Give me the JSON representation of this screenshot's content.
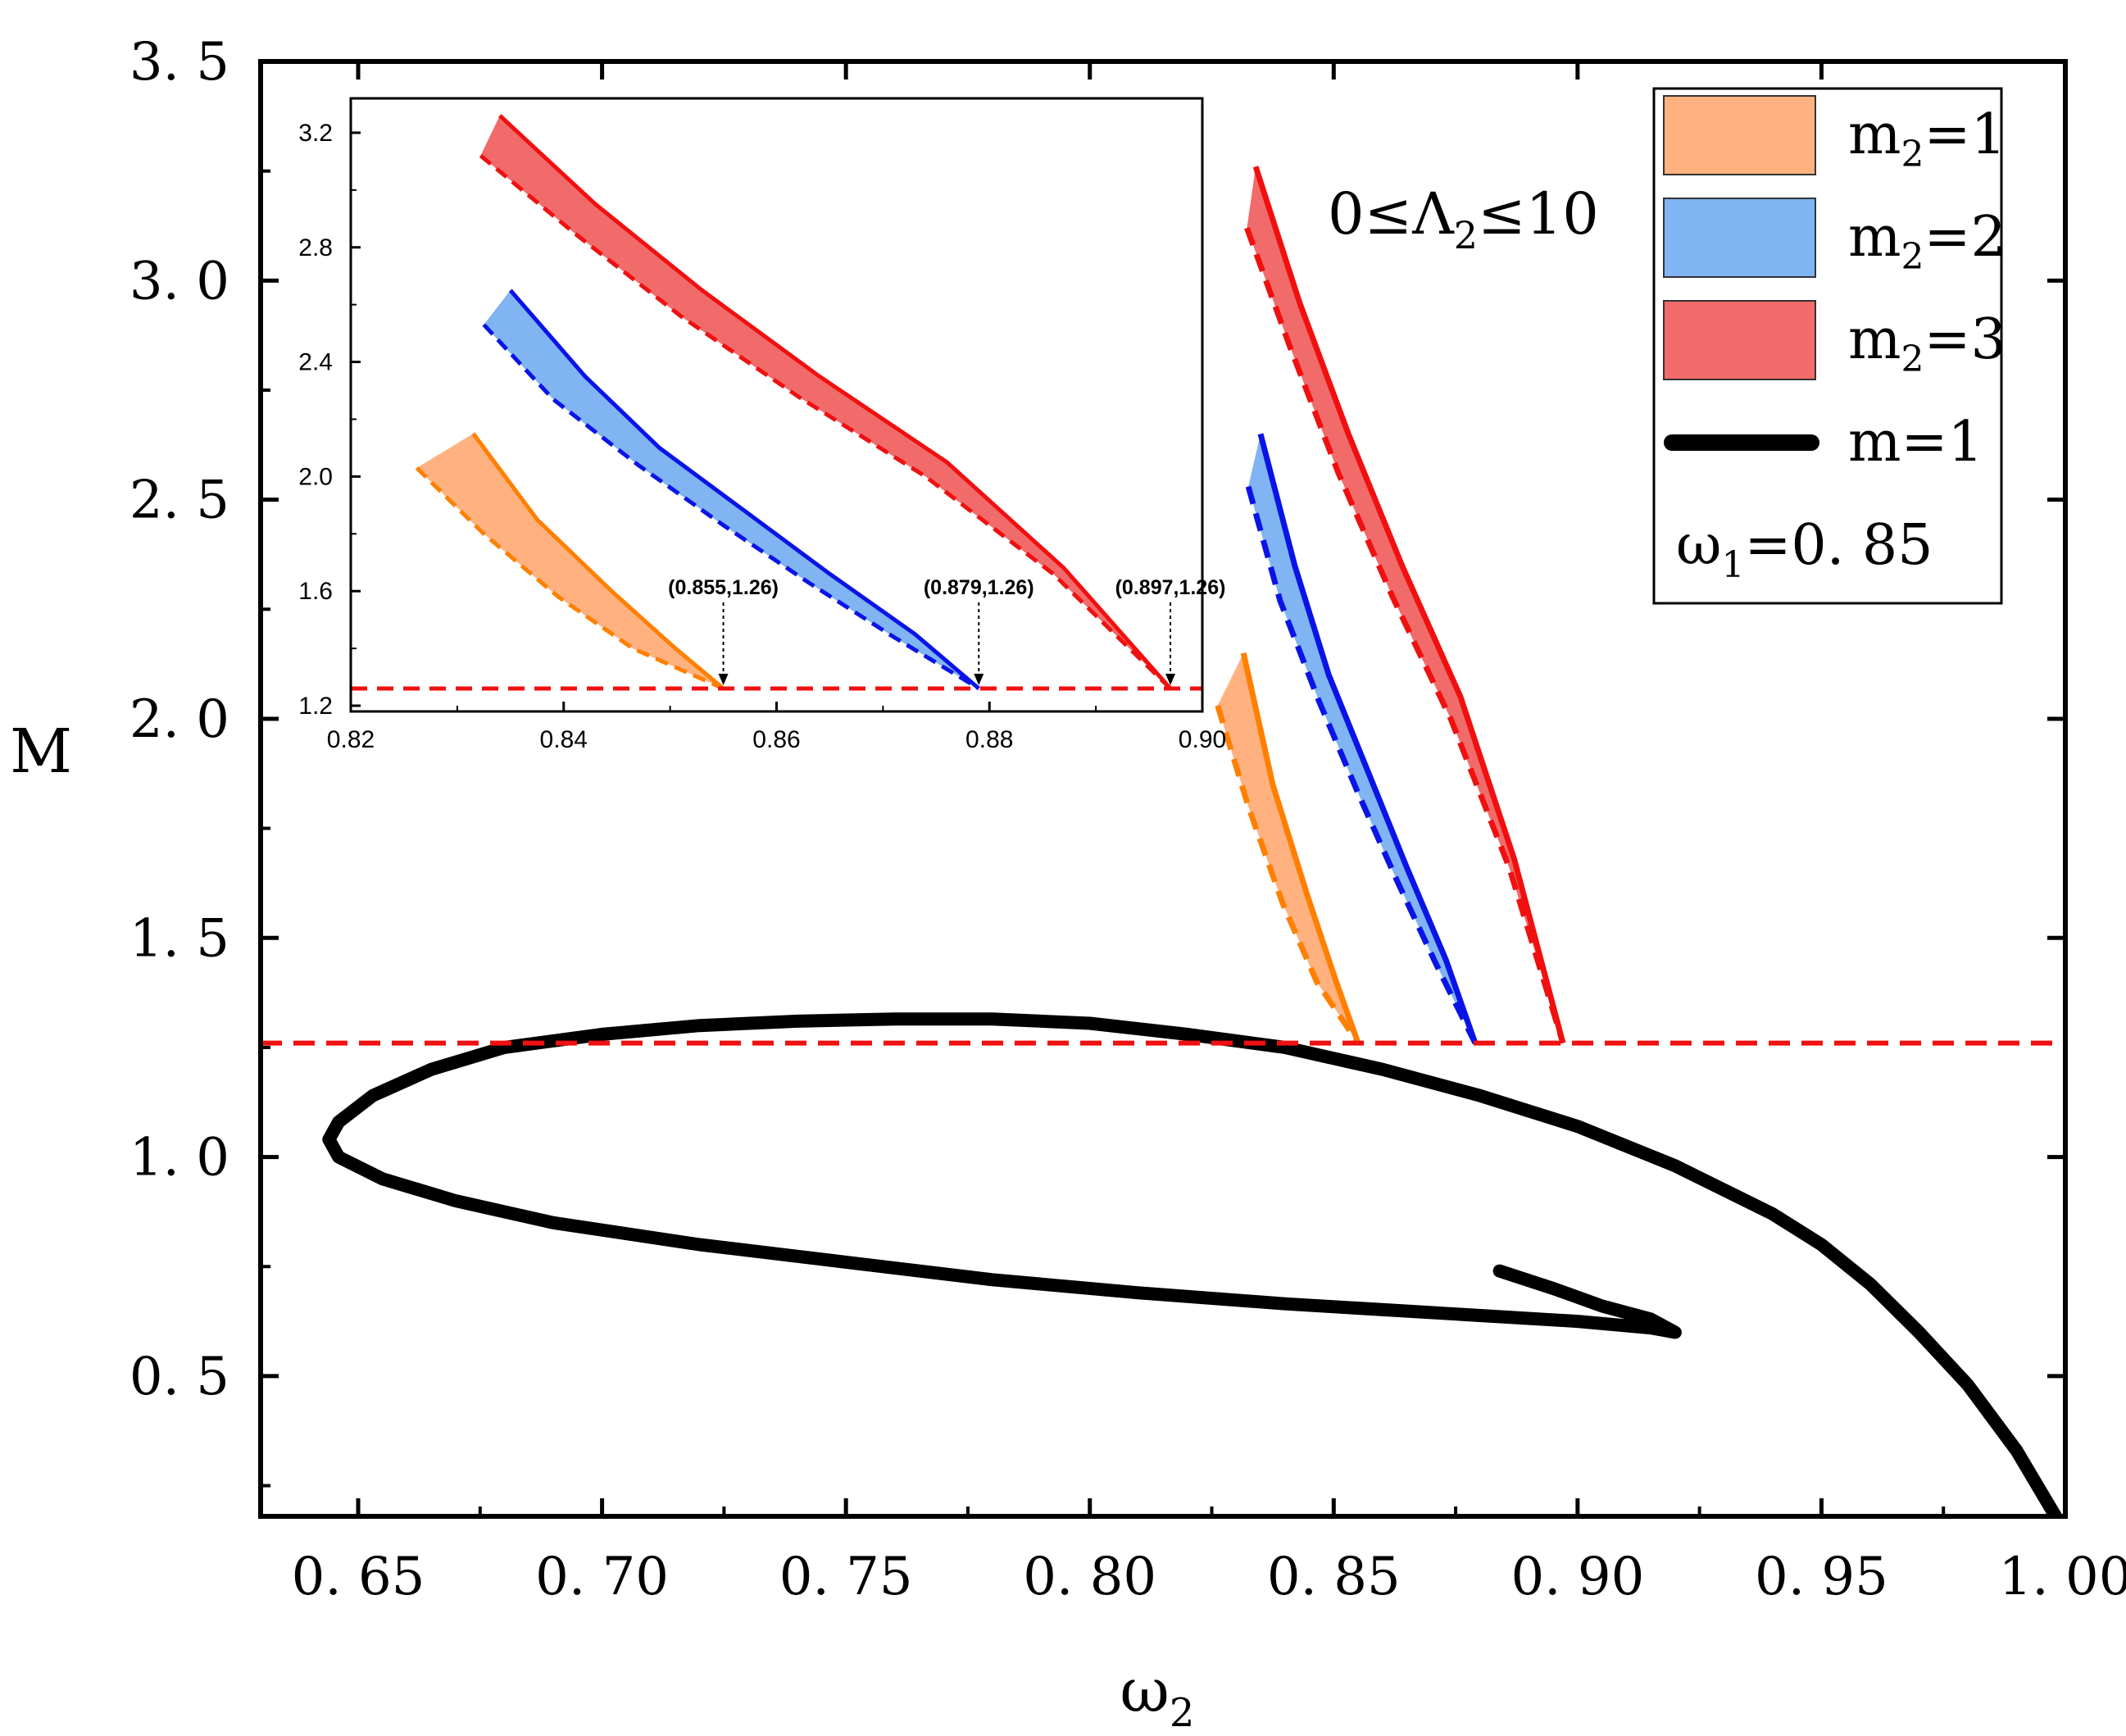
{
  "colors": {
    "orange": "#ff7f00",
    "orange_fill": "#ffb27f",
    "blue": "#0a14e6",
    "blue_fill": "#80b4f2",
    "red": "#f01010",
    "red_fill": "#f26b6b",
    "black": "#000000"
  },
  "chart_data": [
    {
      "id": "main",
      "type": "line",
      "xlabel": "ω",
      "xlabel_sub": "2",
      "ylabel": "M",
      "xlim": [
        0.63,
        1.0
      ],
      "ylim": [
        0.18,
        3.5
      ],
      "xticks": [
        0.65,
        0.7,
        0.75,
        0.8,
        0.85,
        0.9,
        0.95,
        1.0
      ],
      "xtick_labels": [
        "0. 65",
        "0. 70",
        "0. 75",
        "0. 80",
        "0. 85",
        "0. 90",
        "0. 95",
        "1. 00"
      ],
      "yticks": [
        0.5,
        1.0,
        1.5,
        2.0,
        2.5,
        3.0,
        3.5
      ],
      "ytick_labels": [
        "0. 5",
        "1. 0",
        "1. 5",
        "2. 0",
        "2. 5",
        "3. 0",
        "3. 5"
      ],
      "annotation": {
        "text": "0≤Λ",
        "sub": "2",
        "tail": "≤10"
      },
      "legend": {
        "placement": "top-right",
        "entries": [
          {
            "label": "m",
            "sub": "2",
            "tail": "=1",
            "type": "fill",
            "color": "orange"
          },
          {
            "label": "m",
            "sub": "2",
            "tail": "=2",
            "type": "fill",
            "color": "blue"
          },
          {
            "label": "m",
            "sub": "2",
            "tail": "=3",
            "type": "fill",
            "color": "red"
          },
          {
            "label": "m=1",
            "sub": "",
            "tail": "",
            "type": "line",
            "color": "black"
          }
        ],
        "note": {
          "label": "ω",
          "sub": "1",
          "tail": "=0. 85"
        }
      },
      "hline": {
        "y": 1.26,
        "color": "red",
        "dash": true
      },
      "series": [
        {
          "name": "m=1",
          "color": "black",
          "points": [
            [
              0.998,
              0.18
            ],
            [
              0.99,
              0.33
            ],
            [
              0.98,
              0.48
            ],
            [
              0.97,
              0.6
            ],
            [
              0.96,
              0.71
            ],
            [
              0.95,
              0.8
            ],
            [
              0.94,
              0.87
            ],
            [
              0.92,
              0.98
            ],
            [
              0.9,
              1.07
            ],
            [
              0.88,
              1.14
            ],
            [
              0.86,
              1.2
            ],
            [
              0.84,
              1.25
            ],
            [
              0.82,
              1.28
            ],
            [
              0.8,
              1.305
            ],
            [
              0.78,
              1.315
            ],
            [
              0.76,
              1.315
            ],
            [
              0.74,
              1.31
            ],
            [
              0.72,
              1.3
            ],
            [
              0.7,
              1.28
            ],
            [
              0.68,
              1.25
            ],
            [
              0.665,
              1.2
            ],
            [
              0.653,
              1.14
            ],
            [
              0.646,
              1.08
            ],
            [
              0.644,
              1.04
            ],
            [
              0.646,
              1.0
            ],
            [
              0.655,
              0.95
            ],
            [
              0.67,
              0.9
            ],
            [
              0.69,
              0.85
            ],
            [
              0.72,
              0.8
            ],
            [
              0.75,
              0.76
            ],
            [
              0.78,
              0.72
            ],
            [
              0.81,
              0.69
            ],
            [
              0.84,
              0.665
            ],
            [
              0.87,
              0.645
            ],
            [
              0.9,
              0.625
            ],
            [
              0.915,
              0.61
            ],
            [
              0.92,
              0.6
            ],
            [
              0.915,
              0.63
            ],
            [
              0.905,
              0.66
            ],
            [
              0.895,
              0.7
            ],
            [
              0.884,
              0.74
            ]
          ]
        },
        {
          "name": "m2=1",
          "color": "orange",
          "fill": "orange_fill",
          "solid": [
            [
              0.8315,
              2.15
            ],
            [
              0.8375,
              1.85
            ],
            [
              0.8445,
              1.6
            ],
            [
              0.8505,
              1.4
            ],
            [
              0.855,
              1.26
            ]
          ],
          "dashed": [
            [
              0.8262,
              2.03
            ],
            [
              0.8325,
              1.8
            ],
            [
              0.8395,
              1.58
            ],
            [
              0.8465,
              1.4
            ],
            [
              0.855,
              1.26
            ]
          ]
        },
        {
          "name": "m2=2",
          "color": "blue",
          "fill": "blue_fill",
          "solid": [
            [
              0.835,
              2.65
            ],
            [
              0.842,
              2.35
            ],
            [
              0.849,
              2.1
            ],
            [
              0.857,
              1.88
            ],
            [
              0.865,
              1.66
            ],
            [
              0.873,
              1.45
            ],
            [
              0.879,
              1.26
            ]
          ],
          "dashed": [
            [
              0.8325,
              2.53
            ],
            [
              0.839,
              2.27
            ],
            [
              0.847,
              2.04
            ],
            [
              0.855,
              1.83
            ],
            [
              0.863,
              1.63
            ],
            [
              0.871,
              1.44
            ],
            [
              0.879,
              1.26
            ]
          ]
        },
        {
          "name": "m2=3",
          "color": "red",
          "fill": "red_fill",
          "solid": [
            [
              0.834,
              3.26
            ],
            [
              0.843,
              2.95
            ],
            [
              0.853,
              2.65
            ],
            [
              0.864,
              2.35
            ],
            [
              0.876,
              2.05
            ],
            [
              0.887,
              1.68
            ],
            [
              0.897,
              1.26
            ]
          ],
          "dashed": [
            [
              0.8322,
              3.12
            ],
            [
              0.841,
              2.85
            ],
            [
              0.851,
              2.56
            ],
            [
              0.862,
              2.28
            ],
            [
              0.874,
              2.0
            ],
            [
              0.886,
              1.66
            ],
            [
              0.897,
              1.26
            ]
          ]
        }
      ]
    },
    {
      "id": "inset",
      "type": "line",
      "placement": "upper-left inset",
      "xlim": [
        0.82,
        0.9
      ],
      "ylim": [
        1.18,
        3.32
      ],
      "xticks": [
        0.82,
        0.84,
        0.86,
        0.88,
        0.9
      ],
      "xtick_labels": [
        "0.82",
        "0.84",
        "0.86",
        "0.88",
        "0.90"
      ],
      "yticks": [
        1.2,
        1.6,
        2.0,
        2.4,
        2.8,
        3.2
      ],
      "ytick_labels": [
        "1.2",
        "1.6",
        "2.0",
        "2.4",
        "2.8",
        "3.2"
      ],
      "hline": {
        "y": 1.26,
        "color": "red",
        "dash": true
      },
      "annotations": [
        {
          "text": "(0.855,1.26)",
          "x": 0.855,
          "y": 1.26
        },
        {
          "text": "(0.879,1.26)",
          "x": 0.879,
          "y": 1.26
        },
        {
          "text": "(0.897,1.26)",
          "x": 0.897,
          "y": 1.26
        }
      ]
    }
  ]
}
